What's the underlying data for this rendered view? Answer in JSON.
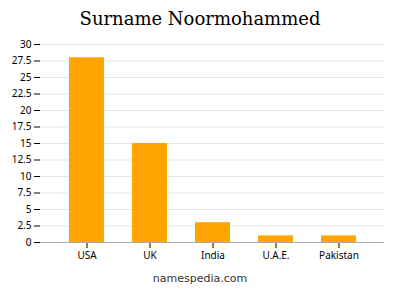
{
  "chart_data": {
    "type": "bar",
    "title": "Surname Noormohammed",
    "caption": "namespedia.com",
    "categories": [
      "USA",
      "UK",
      "India",
      "U.A.E.",
      "Pakistan"
    ],
    "values": [
      28,
      15,
      3,
      1,
      1
    ],
    "color": "#FFA500",
    "ylim": [
      0,
      30
    ],
    "yticks": [
      0,
      2.5,
      5,
      7.5,
      10,
      12.5,
      15,
      17.5,
      20,
      22.5,
      25,
      27.5,
      30
    ],
    "grid": true
  }
}
